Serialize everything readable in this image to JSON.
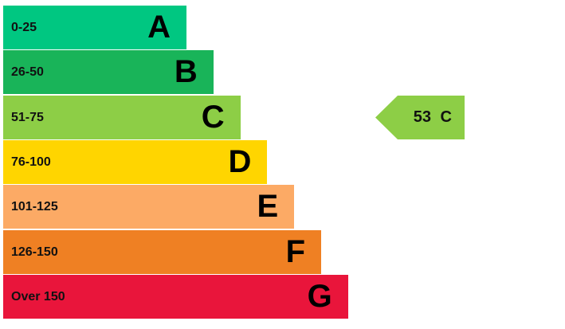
{
  "chart_data": {
    "type": "bar",
    "bands": [
      {
        "range": "0-25",
        "letter": "A",
        "color": "#00c781"
      },
      {
        "range": "26-50",
        "letter": "B",
        "color": "#19b459"
      },
      {
        "range": "51-75",
        "letter": "C",
        "color": "#8dce46"
      },
      {
        "range": "76-100",
        "letter": "D",
        "color": "#ffd500"
      },
      {
        "range": "101-125",
        "letter": "E",
        "color": "#fcaa65"
      },
      {
        "range": "126-150",
        "letter": "F",
        "color": "#ef8023"
      },
      {
        "range": "Over 150",
        "letter": "G",
        "color": "#e9153b"
      }
    ],
    "current": {
      "value": 53,
      "band": "C",
      "label": "53  C",
      "color": "#8dce46"
    }
  }
}
